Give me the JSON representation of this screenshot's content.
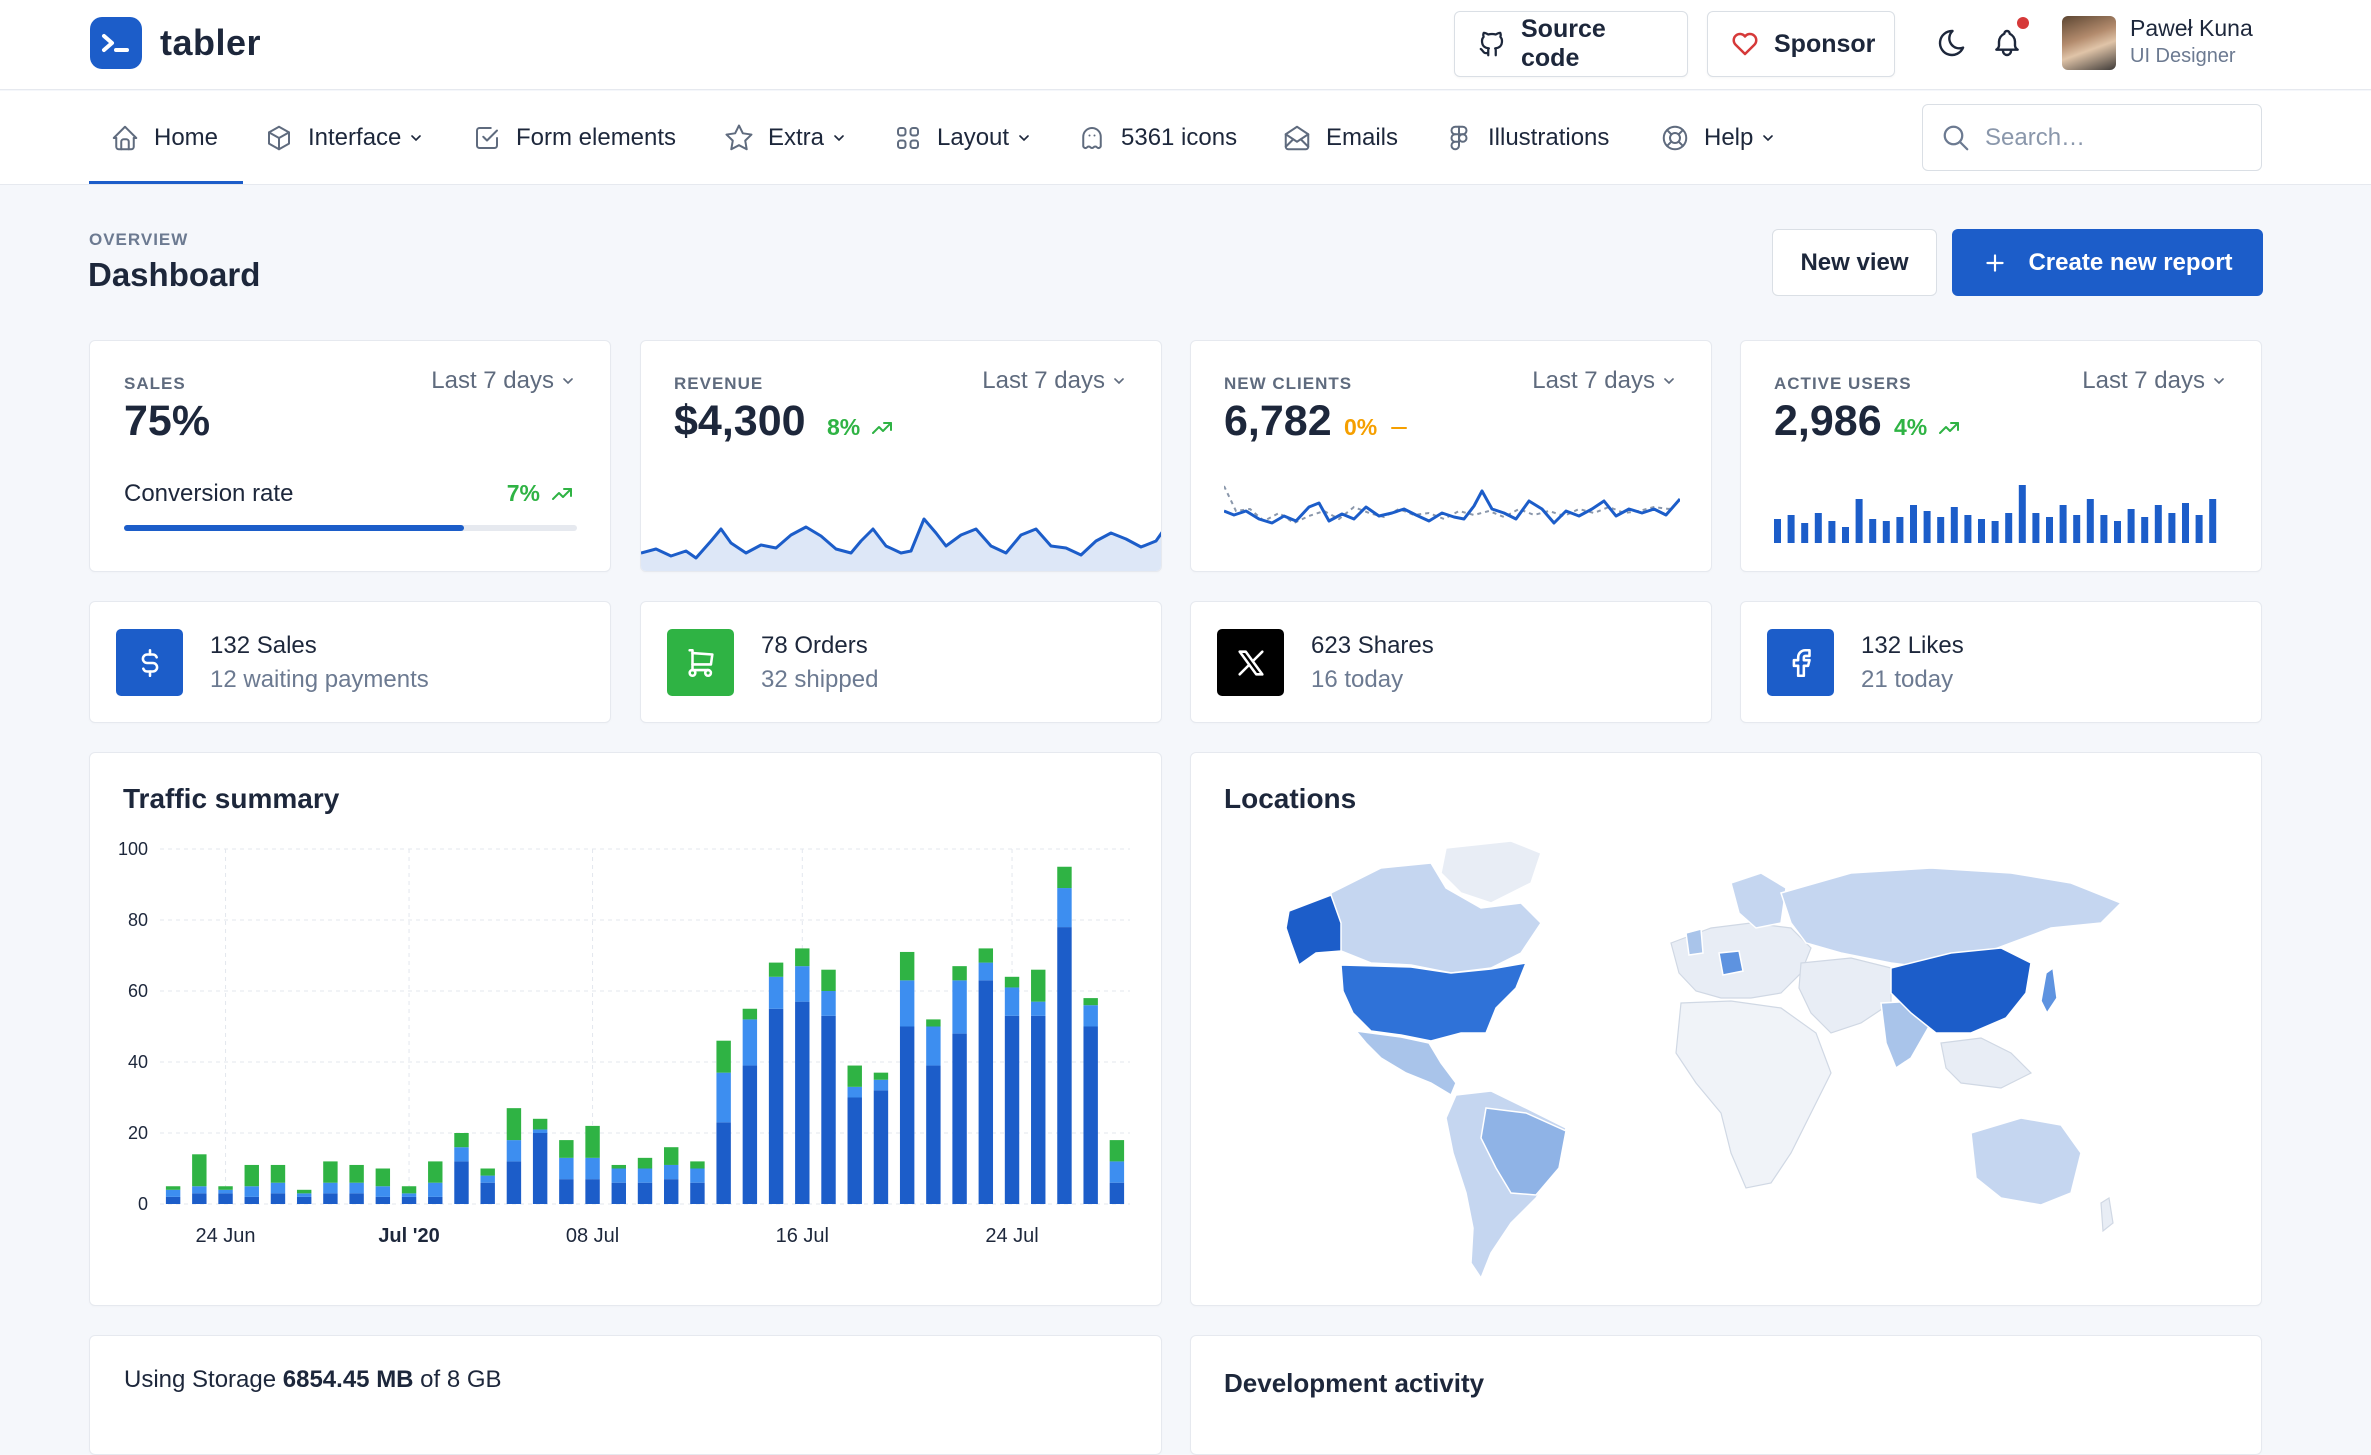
{
  "app": {
    "name": "tabler"
  },
  "header": {
    "source_code_label": "Source code",
    "sponsor_label": "Sponsor",
    "user": {
      "name": "Paweł Kuna",
      "role": "UI Designer"
    }
  },
  "nav": {
    "items": [
      {
        "label": "Home",
        "icon": "home-icon"
      },
      {
        "label": "Interface",
        "icon": "package-icon"
      },
      {
        "label": "Form elements",
        "icon": "checkbox-icon"
      },
      {
        "label": "Extra",
        "icon": "star-icon"
      },
      {
        "label": "Layout",
        "icon": "layout-icon"
      },
      {
        "label": "5361 icons",
        "icon": "ghost-icon"
      },
      {
        "label": "Emails",
        "icon": "mail-icon"
      },
      {
        "label": "Illustrations",
        "icon": "figma-icon"
      },
      {
        "label": "Help",
        "icon": "lifebuoy-icon"
      }
    ],
    "search_placeholder": "Search…"
  },
  "page": {
    "pretitle": "OVERVIEW",
    "title": "Dashboard",
    "new_view_label": "New view",
    "create_report_label": "Create new report"
  },
  "stats": {
    "sales": {
      "label": "SALES",
      "period": "Last 7 days",
      "value": "75%",
      "conversion_label": "Conversion rate",
      "conversion_trend": "7%",
      "progress": 0.75
    },
    "revenue": {
      "label": "REVENUE",
      "period": "Last 7 days",
      "value": "$4,300",
      "trend": "8%"
    },
    "new_clients": {
      "label": "NEW CLIENTS",
      "period": "Last 7 days",
      "value": "6,782",
      "trend": "0%"
    },
    "active_users": {
      "label": "ACTIVE USERS",
      "period": "Last 7 days",
      "value": "2,986",
      "trend": "4%"
    }
  },
  "mini_cards": [
    {
      "title": "132 Sales",
      "subtitle": "12 waiting payments",
      "icon": "dollar-icon",
      "color": "#1c5dc9"
    },
    {
      "title": "78 Orders",
      "subtitle": "32 shipped",
      "icon": "cart-icon",
      "color": "#2fb344"
    },
    {
      "title": "623 Shares",
      "subtitle": "16 today",
      "icon": "x-logo-icon",
      "color": "#000000"
    },
    {
      "title": "132 Likes",
      "subtitle": "21 today",
      "icon": "facebook-icon",
      "color": "#1c5dc9"
    }
  ],
  "traffic": {
    "title": "Traffic summary"
  },
  "chart_data": {
    "type": "bar",
    "stacked": true,
    "ylim": [
      0,
      100
    ],
    "yticks": [
      0,
      20,
      40,
      60,
      80,
      100
    ],
    "xtick_labels": [
      {
        "index": 2,
        "label": "24 Jun",
        "bold": false
      },
      {
        "index": 9,
        "label": "Jul '20",
        "bold": true
      },
      {
        "index": 16,
        "label": "08 Jul",
        "bold": false
      },
      {
        "index": 24,
        "label": "16 Jul",
        "bold": false
      },
      {
        "index": 32,
        "label": "24 Jul",
        "bold": false
      }
    ],
    "series": [
      {
        "color": "#1c5dc9",
        "values": [
          2,
          3,
          3,
          2,
          3,
          2,
          3,
          3,
          2,
          2,
          2,
          12,
          6,
          12,
          20,
          7,
          7,
          6,
          6,
          7,
          6,
          23,
          39,
          55,
          57,
          53,
          30,
          32,
          50,
          39,
          48,
          63,
          53,
          53,
          78,
          50,
          6
        ]
      },
      {
        "color": "#3d8ef0",
        "values": [
          2,
          2,
          1,
          3,
          3,
          1,
          3,
          3,
          3,
          1,
          4,
          4,
          2,
          6,
          1,
          6,
          6,
          4,
          4,
          4,
          4,
          14,
          13,
          9,
          10,
          7,
          3,
          3,
          13,
          11,
          15,
          5,
          8,
          4,
          11,
          6,
          6
        ]
      },
      {
        "color": "#2fb344",
        "values": [
          1,
          9,
          1,
          6,
          5,
          1,
          6,
          5,
          5,
          2,
          6,
          4,
          2,
          9,
          3,
          5,
          9,
          1,
          3,
          5,
          2,
          9,
          3,
          4,
          5,
          6,
          6,
          2,
          8,
          2,
          4,
          4,
          3,
          9,
          6,
          2,
          6
        ]
      }
    ]
  },
  "locations": {
    "title": "Locations"
  },
  "storage": {
    "prefix": "Using Storage ",
    "used": "6854.45 MB",
    "suffix": " of 8 GB"
  },
  "dev_activity": {
    "title": "Development activity"
  }
}
